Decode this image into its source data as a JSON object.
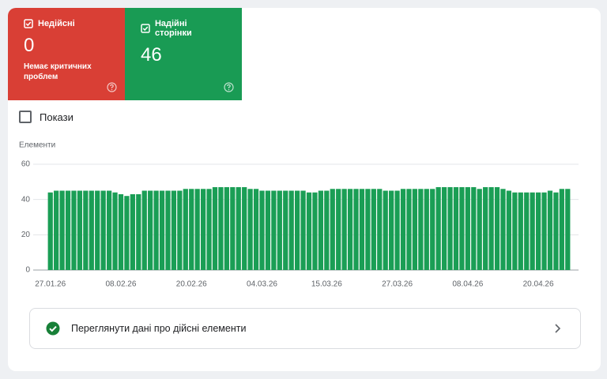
{
  "tiles": [
    {
      "label": "Недійсні",
      "value": "0",
      "note": "Немає критичних проблем"
    },
    {
      "label": "Надійні сторінки",
      "value": "46"
    }
  ],
  "toggle": {
    "label": "Покази"
  },
  "chart_data": {
    "type": "bar",
    "y_label": "Елементи",
    "categories": [
      "27.01.26",
      null,
      null,
      null,
      null,
      null,
      null,
      null,
      null,
      null,
      null,
      null,
      "08.02.26",
      null,
      null,
      null,
      null,
      null,
      null,
      null,
      null,
      null,
      null,
      null,
      "20.02.26",
      null,
      null,
      null,
      null,
      null,
      null,
      null,
      null,
      null,
      null,
      null,
      "04.03.26",
      null,
      null,
      null,
      null,
      null,
      null,
      null,
      null,
      null,
      null,
      "15.03.26",
      null,
      null,
      null,
      null,
      null,
      null,
      null,
      null,
      null,
      null,
      null,
      "27.03.26",
      null,
      null,
      null,
      null,
      null,
      null,
      null,
      null,
      null,
      null,
      null,
      "08.04.26",
      null,
      null,
      null,
      null,
      null,
      null,
      null,
      null,
      null,
      null,
      null,
      "20.04.26",
      null,
      null,
      null,
      null,
      null
    ],
    "values": [
      44,
      45,
      45,
      45,
      45,
      45,
      45,
      45,
      45,
      45,
      45,
      44,
      43,
      42,
      43,
      43,
      45,
      45,
      45,
      45,
      45,
      45,
      45,
      46,
      46,
      46,
      46,
      46,
      47,
      47,
      47,
      47,
      47,
      47,
      46,
      46,
      45,
      45,
      45,
      45,
      45,
      45,
      45,
      45,
      44,
      44,
      45,
      45,
      46,
      46,
      46,
      46,
      46,
      46,
      46,
      46,
      46,
      45,
      45,
      45,
      46,
      46,
      46,
      46,
      46,
      46,
      47,
      47,
      47,
      47,
      47,
      47,
      47,
      46,
      47,
      47,
      47,
      46,
      45,
      44,
      44,
      44,
      44,
      44,
      44,
      45,
      44,
      46,
      46
    ],
    "color": "#1a9e55",
    "ylim": [
      0,
      60
    ],
    "yticks": [
      0,
      20,
      40,
      60
    ],
    "grid": true
  },
  "link": {
    "label": "Переглянути дані про дійсні елементи"
  }
}
